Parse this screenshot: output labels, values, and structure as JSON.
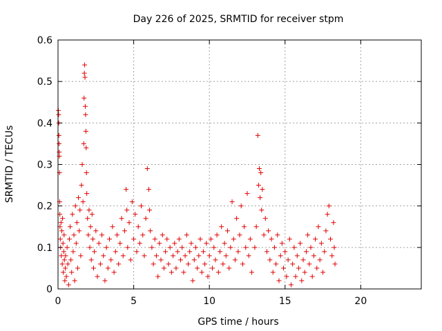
{
  "chart_data": {
    "type": "scatter",
    "title": "Day 226 of 2025, SRMTID for receiver stpm",
    "xlabel": "GPS time / hours",
    "ylabel": "SRMTID / TECUs",
    "xlim": [
      0,
      24
    ],
    "ylim": [
      0,
      0.6
    ],
    "xticks": [
      0,
      5,
      10,
      15,
      20
    ],
    "xtick_labels": [
      "0",
      "5",
      "10",
      "15",
      "20"
    ],
    "yticks": [
      0,
      0.1,
      0.2,
      0.3,
      0.4,
      0.5,
      0.6
    ],
    "ytick_labels": [
      "0",
      "0.1",
      "0.2",
      "0.3",
      "0.4",
      "0.5",
      "0.6"
    ],
    "grid": true,
    "marker": "plus",
    "color": "#e00000",
    "series": [
      {
        "points": [
          [
            0.02,
            0.43
          ],
          [
            0.04,
            0.42
          ],
          [
            0.05,
            0.4
          ],
          [
            0.06,
            0.37
          ],
          [
            0.07,
            0.35
          ],
          [
            0.08,
            0.33
          ],
          [
            0.09,
            0.32
          ],
          [
            0.1,
            0.28
          ],
          [
            0.11,
            0.21
          ],
          [
            0.12,
            0.18
          ],
          [
            0.13,
            0.15
          ],
          [
            0.15,
            0.12
          ],
          [
            0.17,
            0.1
          ],
          [
            0.2,
            0.16
          ],
          [
            0.22,
            0.08
          ],
          [
            0.25,
            0.14
          ],
          [
            0.28,
            0.06
          ],
          [
            0.3,
            0.17
          ],
          [
            0.33,
            0.11
          ],
          [
            0.35,
            0.04
          ],
          [
            0.38,
            0.09
          ],
          [
            0.4,
            0.13
          ],
          [
            0.42,
            0.07
          ],
          [
            0.45,
            0.02
          ],
          [
            0.48,
            0.05
          ],
          [
            0.5,
            0.08
          ],
          [
            0.55,
            0.03
          ],
          [
            0.6,
            0.1
          ],
          [
            0.65,
            0.06
          ],
          [
            0.7,
            0.01
          ],
          [
            0.75,
            0.12
          ],
          [
            0.8,
            0.15
          ],
          [
            0.85,
            0.07
          ],
          [
            0.9,
            0.04
          ],
          [
            0.95,
            0.18
          ],
          [
            1.0,
            0.09
          ],
          [
            1.05,
            0.13
          ],
          [
            1.1,
            0.02
          ],
          [
            1.15,
            0.2
          ],
          [
            1.2,
            0.11
          ],
          [
            1.25,
            0.16
          ],
          [
            1.3,
            0.05
          ],
          [
            1.35,
            0.22
          ],
          [
            1.4,
            0.14
          ],
          [
            1.45,
            0.19
          ],
          [
            1.5,
            0.08
          ],
          [
            1.55,
            0.25
          ],
          [
            1.6,
            0.3
          ],
          [
            1.65,
            0.21
          ],
          [
            1.7,
            0.35
          ],
          [
            1.72,
            0.46
          ],
          [
            1.74,
            0.52
          ],
          [
            1.76,
            0.54
          ],
          [
            1.78,
            0.51
          ],
          [
            1.8,
            0.44
          ],
          [
            1.82,
            0.42
          ],
          [
            1.84,
            0.38
          ],
          [
            1.86,
            0.34
          ],
          [
            1.88,
            0.28
          ],
          [
            1.9,
            0.23
          ],
          [
            1.95,
            0.17
          ],
          [
            2.0,
            0.13
          ],
          [
            2.05,
            0.19
          ],
          [
            2.1,
            0.1
          ],
          [
            2.15,
            0.15
          ],
          [
            2.2,
            0.07
          ],
          [
            2.25,
            0.18
          ],
          [
            2.3,
            0.12
          ],
          [
            2.35,
            0.05
          ],
          [
            2.4,
            0.09
          ],
          [
            2.5,
            0.14
          ],
          [
            2.6,
            0.03
          ],
          [
            2.7,
            0.11
          ],
          [
            2.8,
            0.06
          ],
          [
            2.9,
            0.13
          ],
          [
            3.0,
            0.08
          ],
          [
            3.1,
            0.02
          ],
          [
            3.2,
            0.1
          ],
          [
            3.3,
            0.05
          ],
          [
            3.4,
            0.12
          ],
          [
            3.5,
            0.07
          ],
          [
            3.6,
            0.15
          ],
          [
            3.7,
            0.04
          ],
          [
            3.8,
            0.09
          ],
          [
            3.9,
            0.13
          ],
          [
            4.0,
            0.06
          ],
          [
            4.1,
            0.11
          ],
          [
            4.2,
            0.17
          ],
          [
            4.3,
            0.08
          ],
          [
            4.4,
            0.14
          ],
          [
            4.5,
            0.24
          ],
          [
            4.55,
            0.19
          ],
          [
            4.6,
            0.1
          ],
          [
            4.7,
            0.16
          ],
          [
            4.8,
            0.07
          ],
          [
            4.9,
            0.21
          ],
          [
            5.0,
            0.12
          ],
          [
            5.1,
            0.18
          ],
          [
            5.2,
            0.09
          ],
          [
            5.3,
            0.15
          ],
          [
            5.4,
            0.11
          ],
          [
            5.5,
            0.2
          ],
          [
            5.6,
            0.13
          ],
          [
            5.7,
            0.08
          ],
          [
            5.8,
            0.17
          ],
          [
            5.9,
            0.29
          ],
          [
            6.0,
            0.24
          ],
          [
            6.05,
            0.19
          ],
          [
            6.1,
            0.14
          ],
          [
            6.2,
            0.1
          ],
          [
            6.3,
            0.06
          ],
          [
            6.4,
            0.12
          ],
          [
            6.5,
            0.08
          ],
          [
            6.6,
            0.03
          ],
          [
            6.7,
            0.11
          ],
          [
            6.8,
            0.07
          ],
          [
            6.9,
            0.13
          ],
          [
            7.0,
            0.05
          ],
          [
            7.1,
            0.09
          ],
          [
            7.2,
            0.12
          ],
          [
            7.3,
            0.06
          ],
          [
            7.4,
            0.1
          ],
          [
            7.5,
            0.04
          ],
          [
            7.6,
            0.08
          ],
          [
            7.7,
            0.11
          ],
          [
            7.8,
            0.05
          ],
          [
            7.9,
            0.09
          ],
          [
            8.0,
            0.12
          ],
          [
            8.1,
            0.07
          ],
          [
            8.2,
            0.1
          ],
          [
            8.3,
            0.04
          ],
          [
            8.4,
            0.08
          ],
          [
            8.5,
            0.13
          ],
          [
            8.6,
            0.06
          ],
          [
            8.7,
            0.09
          ],
          [
            8.8,
            0.11
          ],
          [
            8.9,
            0.02
          ],
          [
            9.0,
            0.07
          ],
          [
            9.1,
            0.1
          ],
          [
            9.2,
            0.05
          ],
          [
            9.3,
            0.08
          ],
          [
            9.4,
            0.12
          ],
          [
            9.5,
            0.04
          ],
          [
            9.6,
            0.09
          ],
          [
            9.7,
            0.06
          ],
          [
            9.8,
            0.11
          ],
          [
            9.9,
            0.03
          ],
          [
            10.0,
            0.08
          ],
          [
            10.1,
            0.12
          ],
          [
            10.2,
            0.05
          ],
          [
            10.3,
            0.1
          ],
          [
            10.4,
            0.07
          ],
          [
            10.5,
            0.13
          ],
          [
            10.6,
            0.04
          ],
          [
            10.7,
            0.09
          ],
          [
            10.8,
            0.15
          ],
          [
            10.9,
            0.06
          ],
          [
            11.0,
            0.11
          ],
          [
            11.1,
            0.08
          ],
          [
            11.2,
            0.14
          ],
          [
            11.3,
            0.05
          ],
          [
            11.4,
            0.1
          ],
          [
            11.5,
            0.21
          ],
          [
            11.6,
            0.12
          ],
          [
            11.7,
            0.07
          ],
          [
            11.8,
            0.17
          ],
          [
            11.9,
            0.09
          ],
          [
            12.0,
            0.13
          ],
          [
            12.1,
            0.2
          ],
          [
            12.2,
            0.06
          ],
          [
            12.3,
            0.15
          ],
          [
            12.4,
            0.1
          ],
          [
            12.5,
            0.23
          ],
          [
            12.6,
            0.08
          ],
          [
            12.7,
            0.12
          ],
          [
            12.8,
            0.04
          ],
          [
            13.0,
            0.1
          ],
          [
            13.1,
            0.15
          ],
          [
            13.2,
            0.37
          ],
          [
            13.25,
            0.25
          ],
          [
            13.3,
            0.29
          ],
          [
            13.35,
            0.22
          ],
          [
            13.4,
            0.28
          ],
          [
            13.45,
            0.19
          ],
          [
            13.5,
            0.24
          ],
          [
            13.6,
            0.13
          ],
          [
            13.7,
            0.17
          ],
          [
            13.8,
            0.09
          ],
          [
            13.9,
            0.14
          ],
          [
            14.0,
            0.07
          ],
          [
            14.1,
            0.12
          ],
          [
            14.2,
            0.04
          ],
          [
            14.3,
            0.1
          ],
          [
            14.4,
            0.06
          ],
          [
            14.5,
            0.13
          ],
          [
            14.6,
            0.02
          ],
          [
            14.7,
            0.08
          ],
          [
            14.8,
            0.11
          ],
          [
            14.9,
            0.05
          ],
          [
            15.0,
            0.09
          ],
          [
            15.1,
            0.03
          ],
          [
            15.2,
            0.07
          ],
          [
            15.3,
            0.12
          ],
          [
            15.4,
            0.01
          ],
          [
            15.5,
            0.06
          ],
          [
            15.6,
            0.1
          ],
          [
            15.7,
            0.03
          ],
          [
            15.8,
            0.08
          ],
          [
            15.9,
            0.05
          ],
          [
            16.0,
            0.11
          ],
          [
            16.1,
            0.02
          ],
          [
            16.2,
            0.07
          ],
          [
            16.3,
            0.04
          ],
          [
            16.4,
            0.09
          ],
          [
            16.5,
            0.13
          ],
          [
            16.6,
            0.06
          ],
          [
            16.7,
            0.1
          ],
          [
            16.8,
            0.03
          ],
          [
            16.9,
            0.08
          ],
          [
            17.0,
            0.12
          ],
          [
            17.1,
            0.05
          ],
          [
            17.2,
            0.15
          ],
          [
            17.3,
            0.07
          ],
          [
            17.4,
            0.11
          ],
          [
            17.5,
            0.04
          ],
          [
            17.6,
            0.09
          ],
          [
            17.7,
            0.14
          ],
          [
            17.8,
            0.18
          ],
          [
            17.9,
            0.2
          ],
          [
            18.0,
            0.12
          ],
          [
            18.1,
            0.08
          ],
          [
            18.2,
            0.16
          ],
          [
            18.25,
            0.1
          ],
          [
            18.3,
            0.06
          ]
        ]
      }
    ]
  }
}
